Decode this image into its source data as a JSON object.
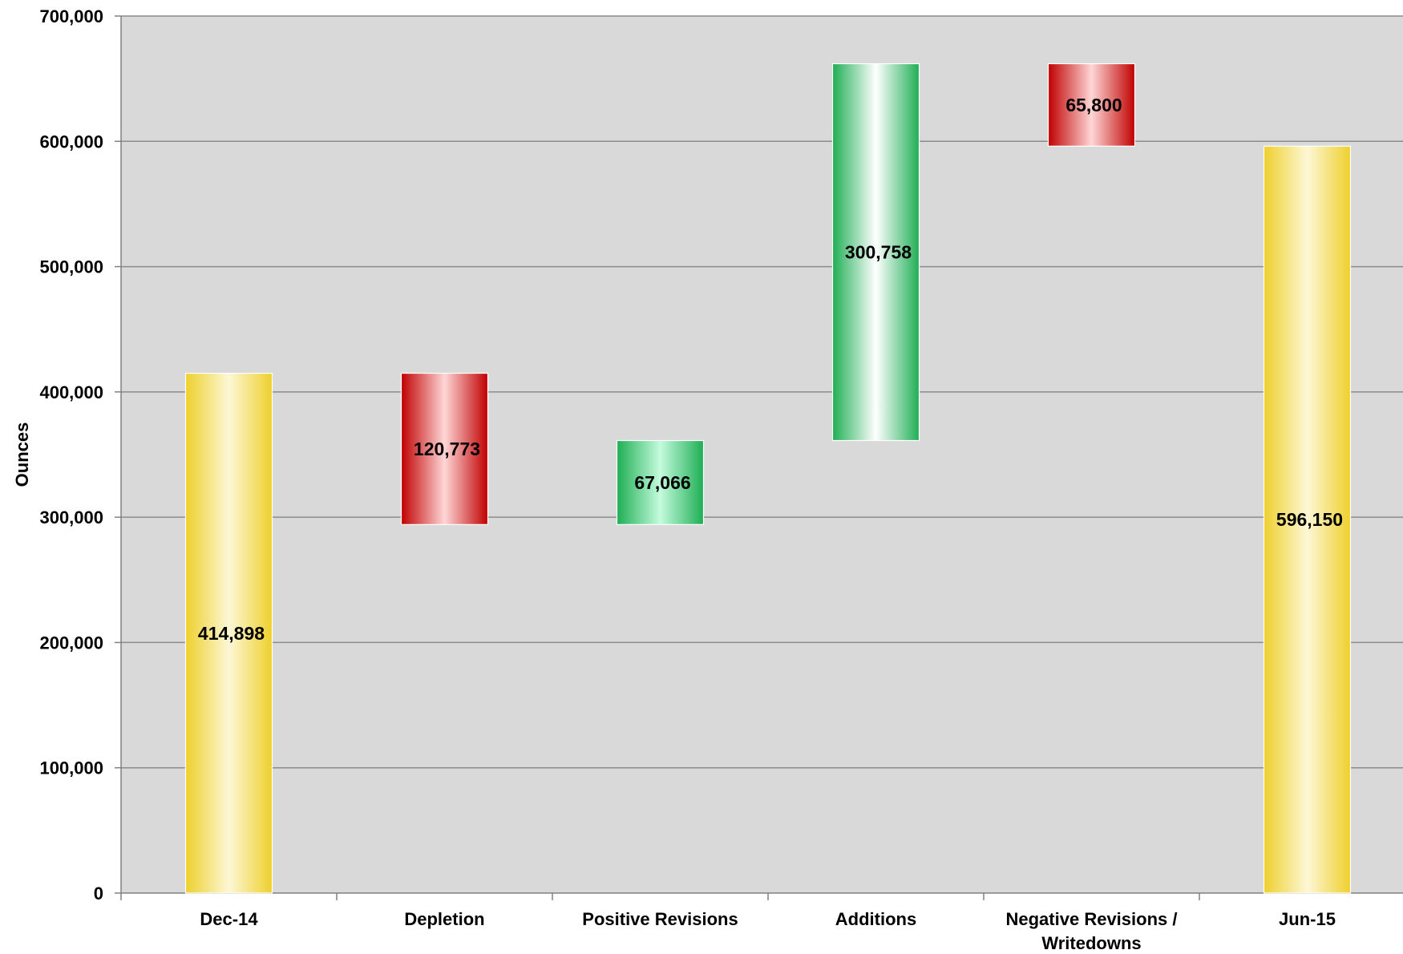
{
  "chart_data": {
    "type": "bar",
    "subtype": "waterfall",
    "ylabel": "Ounces",
    "ylim": [
      0,
      700000
    ],
    "ytick_step": 100000,
    "grid": true,
    "categories": [
      "Dec-14",
      "Depletion",
      "Positive Revisions",
      "Additions",
      "Negative Revisions / Writedowns",
      "Jun-15"
    ],
    "category_lines": [
      [
        "Dec-14"
      ],
      [
        "Depletion"
      ],
      [
        "Positive Revisions"
      ],
      [
        "Additions"
      ],
      [
        "Negative Revisions /",
        "Writedowns"
      ],
      [
        "Jun-15"
      ]
    ],
    "bars": [
      {
        "category": "Dec-14",
        "kind": "total",
        "value": 414898,
        "base": 0,
        "label": "414,898"
      },
      {
        "category": "Depletion",
        "kind": "decrease",
        "value": 120773,
        "base": 294125,
        "label": "120,773"
      },
      {
        "category": "Positive Revisions",
        "kind": "increase",
        "value": 67066,
        "base": 294125,
        "label": "67,066"
      },
      {
        "category": "Additions",
        "kind": "increase",
        "value": 300758,
        "base": 361191,
        "label": "300,758"
      },
      {
        "category": "Negative Revisions / Writedowns",
        "kind": "decrease",
        "value": 65800,
        "base": 596150,
        "label": "65,800"
      },
      {
        "category": "Jun-15",
        "kind": "total",
        "value": 596150,
        "base": 0,
        "label": "596,150"
      }
    ],
    "colors": {
      "plot_background": "#d9d9d9",
      "gridline": "#8c8c8c",
      "total_edge": "#eed02c",
      "total_center": "#fdf7d6",
      "decrease_edge": "#c00000",
      "decrease_center": "#ffd6d6",
      "increase_edge": "#1fae55",
      "increase_center": "#ffffff",
      "positive_revision_center": "#c3fbdc"
    }
  }
}
